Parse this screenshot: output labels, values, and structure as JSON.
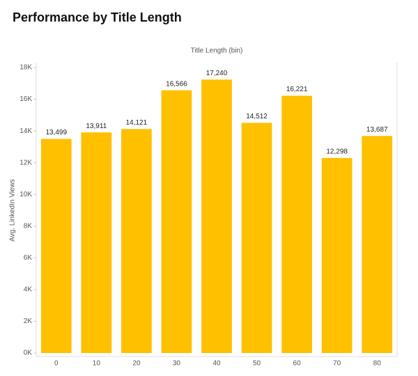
{
  "chart_data": {
    "type": "bar",
    "title": "Performance by Title Length",
    "x_label": "Title Length (bin)",
    "y_label": "Avg. LinkedIn Views",
    "categories": [
      "0",
      "10",
      "20",
      "30",
      "40",
      "50",
      "60",
      "70",
      "80"
    ],
    "values": [
      13499,
      13911,
      14121,
      16566,
      17240,
      14512,
      16221,
      12298,
      13687
    ],
    "value_labels": [
      "13,499",
      "13,911",
      "14,121",
      "16,566",
      "17,240",
      "14,512",
      "16,221",
      "12,298",
      "13,687"
    ],
    "color": "#ffc000",
    "ylim": [
      0,
      18000
    ],
    "yticks": [
      {
        "value": 0,
        "label": "0K"
      },
      {
        "value": 2000,
        "label": "2K"
      },
      {
        "value": 4000,
        "label": "4K"
      },
      {
        "value": 6000,
        "label": "6K"
      },
      {
        "value": 8000,
        "label": "8K"
      },
      {
        "value": 10000,
        "label": "10K"
      },
      {
        "value": 12000,
        "label": "12K"
      },
      {
        "value": 14000,
        "label": "14K"
      },
      {
        "value": 16000,
        "label": "16K"
      },
      {
        "value": 18000,
        "label": "18K"
      }
    ]
  }
}
